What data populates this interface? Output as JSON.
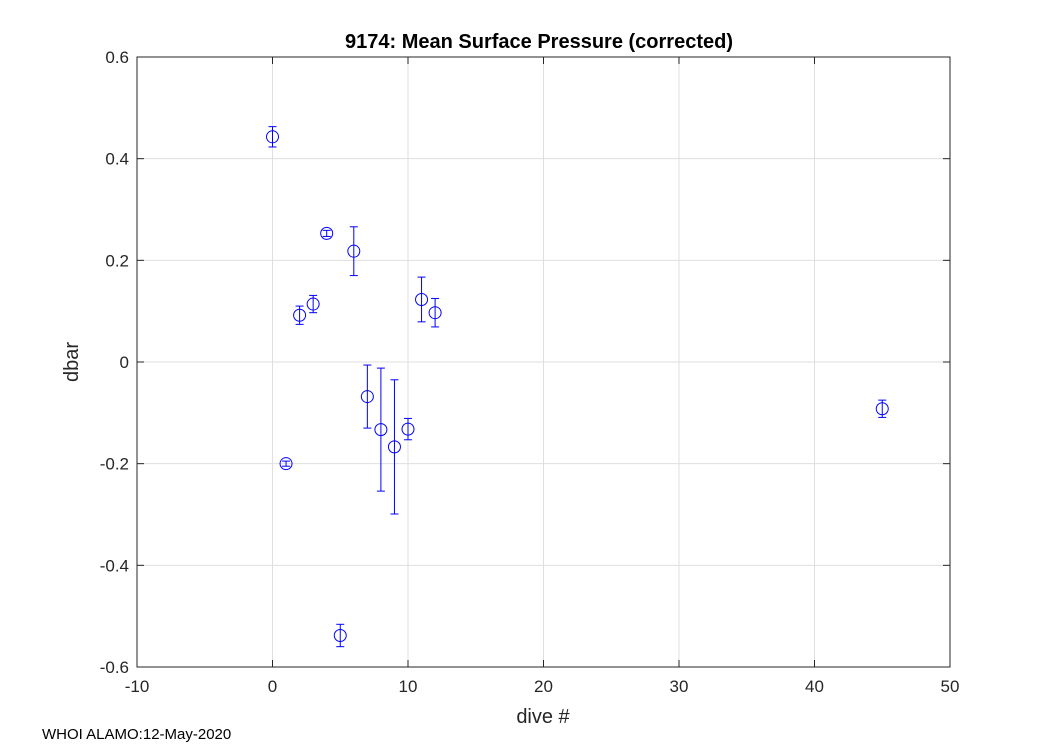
{
  "chart_data": {
    "type": "scatter",
    "title": "9174: Mean Surface Pressure (corrected)",
    "xlabel": "dive #",
    "ylabel": "dbar",
    "xlim": [
      -10,
      50
    ],
    "ylim": [
      -0.6,
      0.6
    ],
    "xticks": [
      -10,
      0,
      10,
      20,
      30,
      40,
      50
    ],
    "xtick_labels": [
      "-10",
      "0",
      "10",
      "20",
      "30",
      "40",
      "50"
    ],
    "yticks": [
      -0.6,
      -0.4,
      -0.2,
      0,
      0.2,
      0.4,
      0.6
    ],
    "ytick_labels": [
      "-0.6",
      "-0.4",
      "-0.2",
      "0",
      "0.2",
      "0.4",
      "0.6"
    ],
    "grid": true,
    "marker": "circle",
    "error_bars": true,
    "series": [
      {
        "name": "mean surface pressure",
        "points": [
          {
            "x": 0,
            "y": 0.443,
            "err": 0.02
          },
          {
            "x": 1,
            "y": -0.2,
            "err": 0.005
          },
          {
            "x": 2,
            "y": 0.092,
            "err": 0.018
          },
          {
            "x": 3,
            "y": 0.114,
            "err": 0.017
          },
          {
            "x": 4,
            "y": 0.253,
            "err": 0.006
          },
          {
            "x": 5,
            "y": -0.538,
            "err": 0.022
          },
          {
            "x": 6,
            "y": 0.218,
            "err": 0.048
          },
          {
            "x": 7,
            "y": -0.068,
            "err": 0.062
          },
          {
            "x": 8,
            "y": -0.133,
            "err": 0.121
          },
          {
            "x": 9,
            "y": -0.167,
            "err": 0.132
          },
          {
            "x": 10,
            "y": -0.132,
            "err": 0.021
          },
          {
            "x": 11,
            "y": 0.123,
            "err": 0.044
          },
          {
            "x": 12,
            "y": 0.097,
            "err": 0.028
          },
          {
            "x": 45,
            "y": -0.092,
            "err": 0.017
          }
        ]
      }
    ]
  },
  "footer_text": "WHOI ALAMO:12-May-2020",
  "colors": {
    "marker": "#0000ff",
    "grid": "#dfdfdf",
    "axis": "#262626",
    "background": "#ffffff"
  }
}
